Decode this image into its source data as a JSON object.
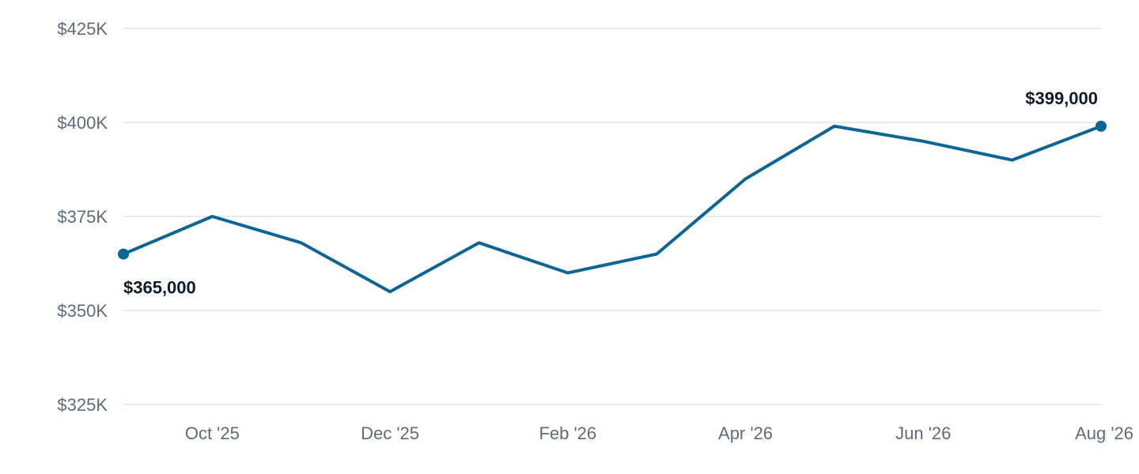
{
  "colors": {
    "series": "#0d6596",
    "grid": "#e1e4e8",
    "tick_text": "#5f6b78",
    "label_text": "#111c2b"
  },
  "chart_data": {
    "type": "line",
    "title": "",
    "xlabel": "",
    "ylabel": "",
    "ylim": [
      325000,
      425000
    ],
    "y_ticks": [
      {
        "value": 325000,
        "label": "$325K"
      },
      {
        "value": 350000,
        "label": "$350K"
      },
      {
        "value": 375000,
        "label": "$375K"
      },
      {
        "value": 400000,
        "label": "$400K"
      },
      {
        "value": 425000,
        "label": "$425K"
      }
    ],
    "x": [
      "2025-09",
      "2025-10",
      "2025-11",
      "2025-12",
      "2026-01",
      "2026-02",
      "2026-03",
      "2026-04",
      "2026-05",
      "2026-06",
      "2026-07",
      "2026-08"
    ],
    "x_ticks": [
      {
        "x": "2025-10",
        "label": "Oct '25"
      },
      {
        "x": "2025-12",
        "label": "Dec '25"
      },
      {
        "x": "2026-02",
        "label": "Feb '26"
      },
      {
        "x": "2026-04",
        "label": "Apr '26"
      },
      {
        "x": "2026-06",
        "label": "Jun '26"
      },
      {
        "x": "2026-08",
        "label": "Aug '26"
      }
    ],
    "series": [
      {
        "values": [
          365000,
          375000,
          368000,
          355000,
          368000,
          360000,
          365000,
          385000,
          399000,
          395000,
          390000,
          399000
        ]
      }
    ],
    "annotations": [
      {
        "x": "2025-09",
        "label": "$365,000",
        "position": "below"
      },
      {
        "x": "2026-08",
        "label": "$399,000",
        "position": "above"
      }
    ],
    "grid": true,
    "legend": "none"
  }
}
